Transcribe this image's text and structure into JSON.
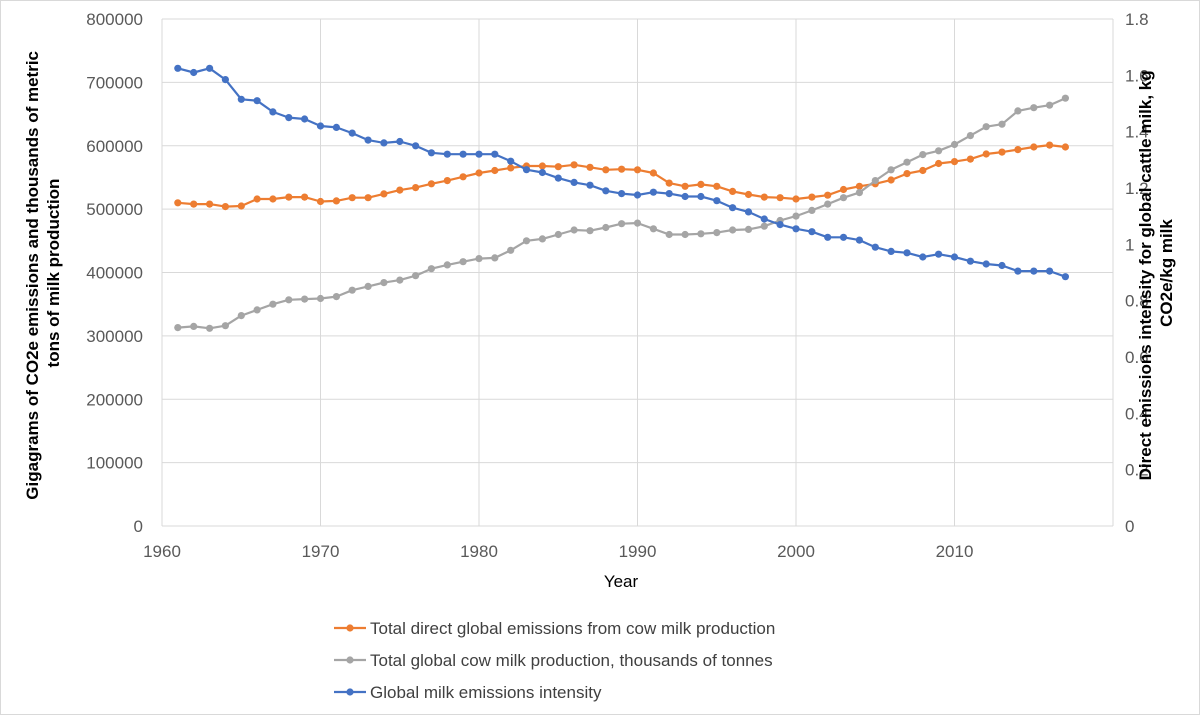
{
  "chart_data": {
    "type": "line",
    "xlabel": "Year",
    "ylabel_left": "Gigagrams of CO2e emissions and thousands of metric tons of milk production",
    "ylabel_left_lines": [
      "Gigagrams of CO2e emissions and thousands of metric",
      "tons of milk production"
    ],
    "ylabel_right": "Direct emissions intensity for global cattle milk, kg CO2e/kg milk",
    "ylabel_right_lines": [
      "Direct emissions intensity for global cattle milk, kg",
      "CO2e/kg milk"
    ],
    "xlim": [
      1960,
      2020
    ],
    "x_ticks": [
      1960,
      1970,
      1980,
      1990,
      2000,
      2010
    ],
    "ylim_left": [
      0,
      800000
    ],
    "y_ticks_left": [
      0,
      100000,
      200000,
      300000,
      400000,
      500000,
      600000,
      700000,
      800000
    ],
    "ylim_right": [
      0,
      1.8
    ],
    "y_ticks_right": [
      "0",
      "0.2",
      "0.4",
      "0.6",
      "0.8",
      "1",
      "1.2",
      "1.4",
      "1.6",
      "1.8"
    ],
    "grid": true,
    "legend_position": "bottom",
    "x": [
      1961,
      1962,
      1963,
      1964,
      1965,
      1966,
      1967,
      1968,
      1969,
      1970,
      1971,
      1972,
      1973,
      1974,
      1975,
      1976,
      1977,
      1978,
      1979,
      1980,
      1981,
      1982,
      1983,
      1984,
      1985,
      1986,
      1987,
      1988,
      1989,
      1990,
      1991,
      1992,
      1993,
      1994,
      1995,
      1996,
      1997,
      1998,
      1999,
      2000,
      2001,
      2002,
      2003,
      2004,
      2005,
      2006,
      2007,
      2008,
      2009,
      2010,
      2011,
      2012,
      2013,
      2014,
      2015,
      2016,
      2017
    ],
    "series": [
      {
        "name": "Total direct global emissions from cow milk production",
        "axis": "left",
        "color": "#ED7D31",
        "values": [
          510000,
          508000,
          508000,
          504000,
          505000,
          516000,
          516000,
          519000,
          519000,
          512000,
          513000,
          518000,
          518000,
          524000,
          530000,
          534000,
          540000,
          545000,
          551000,
          557000,
          561000,
          565000,
          568000,
          568000,
          567000,
          570000,
          566000,
          562000,
          563000,
          562000,
          557000,
          541000,
          536000,
          539000,
          536000,
          528000,
          523000,
          519000,
          518000,
          516000,
          519000,
          522000,
          531000,
          536000,
          540000,
          546000,
          556000,
          561000,
          572000,
          575000,
          579000,
          587000,
          590000,
          594000,
          598000,
          601000,
          598000
        ]
      },
      {
        "name": "Total global cow milk production, thousands of tonnes",
        "axis": "left",
        "color": "#A5A5A5",
        "values": [
          313000,
          315000,
          312000,
          316000,
          332000,
          341000,
          350000,
          357000,
          358000,
          359000,
          362000,
          372000,
          378000,
          384000,
          388000,
          395000,
          406000,
          412000,
          417000,
          422000,
          423000,
          435000,
          450000,
          453000,
          460000,
          467000,
          466000,
          471000,
          477000,
          478000,
          469000,
          460000,
          460000,
          461000,
          463000,
          467000,
          468000,
          473000,
          482000,
          489000,
          498000,
          508000,
          518000,
          526000,
          545000,
          562000,
          574000,
          586000,
          592000,
          602000,
          616000,
          630000,
          634000,
          655000,
          660000,
          664000,
          675000
        ]
      },
      {
        "name": "Global milk emissions intensity",
        "axis": "right",
        "color": "#4472C4",
        "values": [
          1.625,
          1.61,
          1.625,
          1.585,
          1.515,
          1.51,
          1.47,
          1.45,
          1.445,
          1.42,
          1.415,
          1.395,
          1.37,
          1.36,
          1.365,
          1.35,
          1.325,
          1.32,
          1.32,
          1.32,
          1.32,
          1.295,
          1.265,
          1.255,
          1.235,
          1.22,
          1.21,
          1.19,
          1.18,
          1.175,
          1.185,
          1.18,
          1.17,
          1.17,
          1.155,
          1.13,
          1.115,
          1.09,
          1.07,
          1.055,
          1.045,
          1.025,
          1.025,
          1.015,
          0.99,
          0.975,
          0.97,
          0.955,
          0.965,
          0.955,
          0.94,
          0.93,
          0.925,
          0.905,
          0.905,
          0.905,
          0.885
        ]
      }
    ]
  }
}
